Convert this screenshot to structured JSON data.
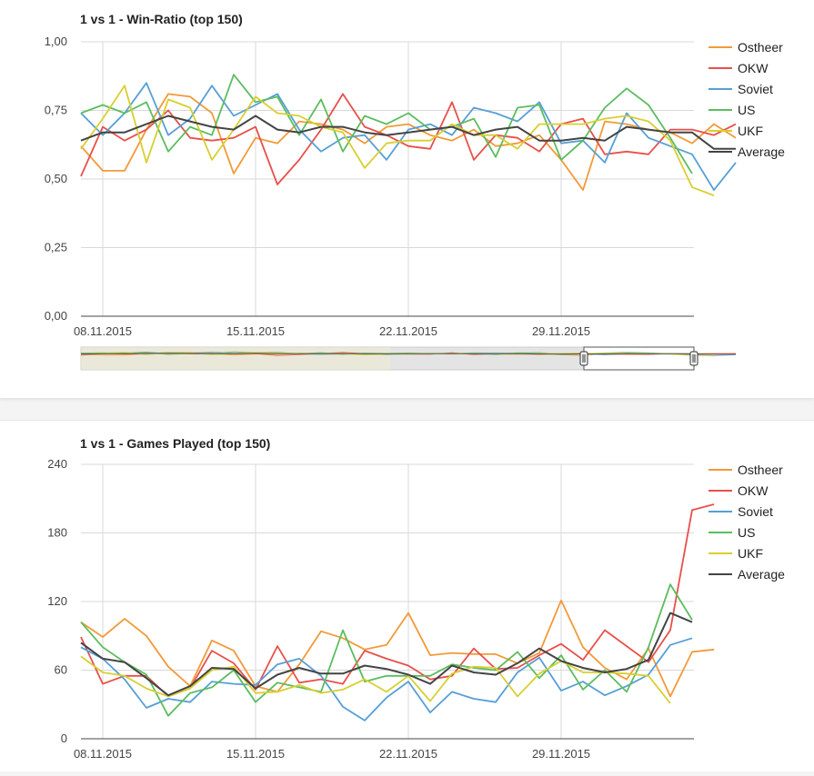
{
  "colors": {
    "Ostheer": "#f29a38",
    "OKW": "#e8504a",
    "Soviet": "#569fd6",
    "US": "#5cbd5e",
    "UKF": "#d8cf31",
    "Average": "#444444",
    "grid": "#d9d9d9",
    "axis": "#444444"
  },
  "chart_data": [
    {
      "type": "line",
      "title": "1 vs 1 - Win-Ratio (top 150)",
      "x_ticks": [
        "08.11.2015",
        "15.11.2015",
        "22.11.2015",
        "29.11.2015"
      ],
      "x_tick_index": [
        1,
        8,
        15,
        22
      ],
      "y_ticks": [
        "0,00",
        "0,25",
        "0,50",
        "0,75",
        "1,00"
      ],
      "ylim": [
        0,
        1
      ],
      "grid": true,
      "legend_position": "right",
      "series": [
        {
          "name": "Ostheer",
          "values": [
            0.62,
            0.53,
            0.53,
            0.68,
            0.81,
            0.8,
            0.74,
            0.52,
            0.65,
            0.63,
            0.71,
            0.7,
            0.68,
            0.63,
            0.69,
            0.7,
            0.66,
            0.64,
            0.68,
            0.62,
            0.63,
            0.66,
            0.57,
            0.46,
            0.71,
            0.7,
            0.68,
            0.67,
            0.63,
            0.7,
            0.65
          ]
        },
        {
          "name": "OKW",
          "values": [
            0.51,
            0.69,
            0.64,
            0.68,
            0.75,
            0.65,
            0.64,
            0.65,
            0.69,
            0.48,
            0.57,
            0.68,
            0.81,
            0.69,
            0.66,
            0.62,
            0.61,
            0.78,
            0.57,
            0.66,
            0.65,
            0.6,
            0.7,
            0.72,
            0.59,
            0.6,
            0.59,
            0.68,
            0.68,
            0.66,
            0.7
          ]
        },
        {
          "name": "Soviet",
          "values": [
            0.74,
            0.66,
            0.74,
            0.85,
            0.66,
            0.72,
            0.84,
            0.73,
            0.77,
            0.81,
            0.68,
            0.6,
            0.65,
            0.66,
            0.57,
            0.68,
            0.7,
            0.66,
            0.76,
            0.74,
            0.71,
            0.78,
            0.63,
            0.64,
            0.56,
            0.74,
            0.65,
            0.62,
            0.59,
            0.46,
            0.56
          ]
        },
        {
          "name": "US",
          "values": [
            0.74,
            0.77,
            0.74,
            0.78,
            0.6,
            0.69,
            0.66,
            0.88,
            0.78,
            0.8,
            0.66,
            0.79,
            0.6,
            0.73,
            0.7,
            0.74,
            0.68,
            0.69,
            0.72,
            0.58,
            0.76,
            0.77,
            0.57,
            0.64,
            0.76,
            0.83,
            0.77,
            0.65,
            0.52
          ]
        },
        {
          "name": "UKF",
          "values": [
            0.61,
            0.72,
            0.84,
            0.56,
            0.79,
            0.76,
            0.57,
            0.68,
            0.8,
            0.74,
            0.73,
            0.69,
            0.67,
            0.54,
            0.63,
            0.64,
            0.64,
            0.7,
            0.66,
            0.66,
            0.61,
            0.7,
            0.7,
            0.7,
            0.72,
            0.73,
            0.71,
            0.64,
            0.47,
            0.44
          ]
        },
        {
          "name": "Average",
          "values": [
            0.64,
            0.67,
            0.67,
            0.7,
            0.73,
            0.71,
            0.69,
            0.68,
            0.73,
            0.68,
            0.67,
            0.69,
            0.69,
            0.67,
            0.66,
            0.67,
            0.68,
            0.69,
            0.66,
            0.68,
            0.69,
            0.64,
            0.64,
            0.65,
            0.64,
            0.69,
            0.68,
            0.67,
            0.67,
            0.61,
            0.61
          ]
        }
      ]
    },
    {
      "type": "line",
      "title": "1 vs 1 - Games Played (top 150)",
      "x_ticks": [
        "08.11.2015",
        "15.11.2015",
        "22.11.2015",
        "29.11.2015"
      ],
      "x_tick_index": [
        1,
        8,
        15,
        22
      ],
      "y_ticks": [
        "0",
        "60",
        "120",
        "180",
        "240"
      ],
      "ylim": [
        0,
        240
      ],
      "grid": true,
      "legend_position": "right",
      "series": [
        {
          "name": "Ostheer",
          "values": [
            102,
            89,
            105,
            90,
            63,
            46,
            86,
            77,
            46,
            41,
            65,
            94,
            88,
            78,
            82,
            110,
            73,
            75,
            74,
            74,
            66,
            75,
            121,
            80,
            62,
            52,
            79,
            37,
            76,
            78
          ]
        },
        {
          "name": "OKW",
          "values": [
            89,
            48,
            55,
            55,
            37,
            44,
            77,
            66,
            43,
            81,
            49,
            52,
            48,
            77,
            70,
            64,
            52,
            55,
            79,
            61,
            62,
            73,
            83,
            69,
            95,
            81,
            67,
            95,
            200,
            205
          ]
        },
        {
          "name": "Soviet",
          "values": [
            80,
            70,
            52,
            27,
            35,
            32,
            50,
            48,
            47,
            65,
            70,
            55,
            28,
            16,
            36,
            50,
            23,
            41,
            35,
            32,
            58,
            71,
            42,
            50,
            38,
            46,
            56,
            82,
            88
          ]
        },
        {
          "name": "US",
          "values": [
            102,
            80,
            67,
            56,
            20,
            40,
            45,
            60,
            32,
            49,
            45,
            41,
            95,
            50,
            55,
            55,
            55,
            65,
            62,
            60,
            76,
            53,
            73,
            43,
            60,
            41,
            80,
            135,
            104
          ]
        },
        {
          "name": "UKF",
          "values": [
            72,
            58,
            55,
            44,
            37,
            44,
            60,
            63,
            40,
            41,
            47,
            40,
            43,
            52,
            41,
            55,
            33,
            57,
            63,
            62,
            37,
            57,
            68,
            58,
            58,
            57,
            55,
            31
          ]
        },
        {
          "name": "Average",
          "values": [
            84,
            70,
            67,
            53,
            38,
            46,
            62,
            61,
            44,
            56,
            62,
            57,
            57,
            64,
            61,
            56,
            48,
            64,
            58,
            56,
            66,
            79,
            68,
            62,
            58,
            61,
            69,
            110,
            102
          ]
        }
      ]
    }
  ]
}
